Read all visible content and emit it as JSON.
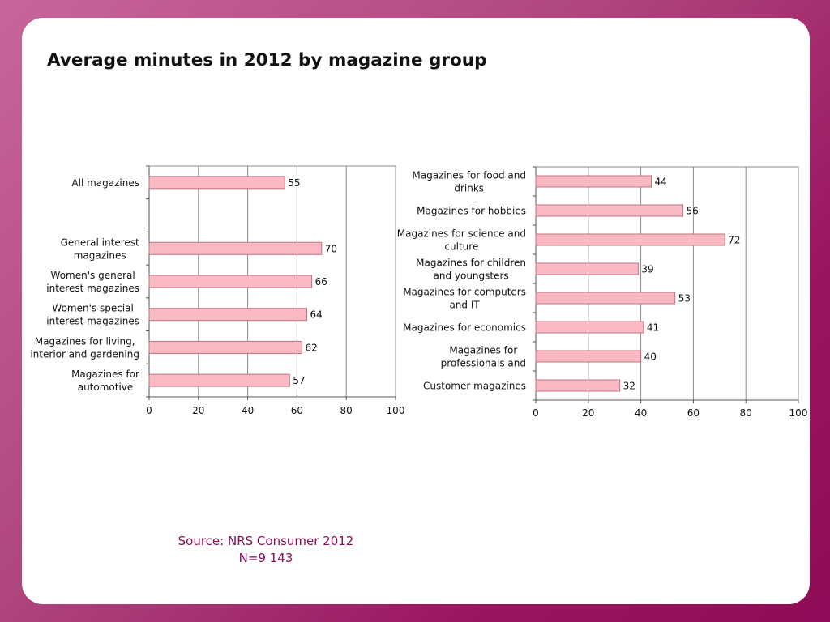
{
  "slide": {
    "title": "Average minutes in 2012 by magazine group",
    "source_line1": "Source: NRS Consumer 2012",
    "source_line2": "N=9 143"
  },
  "colors": {
    "bar_fill": "#fbb9c3",
    "bar_stroke": "#c0737f",
    "grid": "#8c8c8c",
    "source_text": "#8a0d5c"
  },
  "chart_data": [
    {
      "type": "bar",
      "orientation": "horizontal",
      "categories": [
        [
          "All magazines"
        ],
        [],
        [
          "General interest",
          "magazines"
        ],
        [
          "Women's general",
          "interest magazines"
        ],
        [
          "Women's special",
          "interest magazines"
        ],
        [
          "Magazines for living,",
          "interior and gardening"
        ],
        [
          "Magazines for",
          "automotive"
        ]
      ],
      "values": [
        55,
        null,
        70,
        66,
        64,
        62,
        57
      ],
      "xlim": [
        0,
        100
      ],
      "xticks": [
        0,
        20,
        40,
        60,
        80,
        100
      ],
      "grid": true,
      "legend": "none"
    },
    {
      "type": "bar",
      "orientation": "horizontal",
      "categories": [
        [
          "Magazines for food and",
          "drinks"
        ],
        [
          "Magazines for hobbies"
        ],
        [
          "Magazines for science and",
          "culture"
        ],
        [
          "Magazines for children",
          "and youngsters"
        ],
        [
          "Magazines for computers",
          "and IT"
        ],
        [
          "Magazines for economics"
        ],
        [
          "Magazines for",
          "professionals and"
        ],
        [
          "Customer magazines"
        ]
      ],
      "values": [
        44,
        56,
        72,
        39,
        53,
        41,
        40,
        32
      ],
      "xlim": [
        0,
        100
      ],
      "xticks": [
        0,
        20,
        40,
        60,
        80,
        100
      ],
      "grid": true,
      "legend": "none"
    }
  ]
}
